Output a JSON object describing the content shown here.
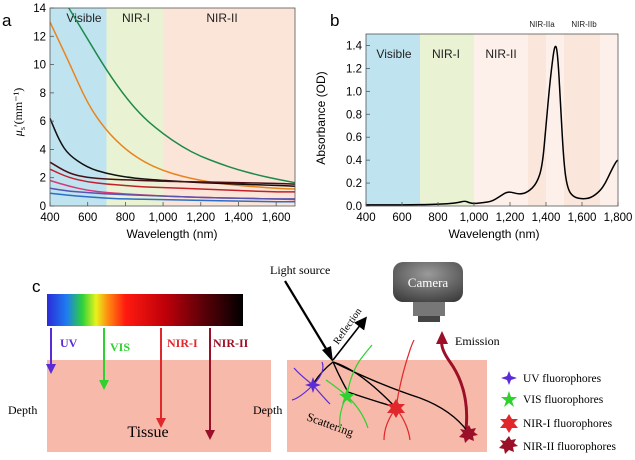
{
  "panel_a": {
    "letter": "a",
    "region_labels": [
      "Visible",
      "NIR-I",
      "NIR-II"
    ],
    "regions": [
      {
        "from": 400,
        "to": 700,
        "color": "#bfe3ef"
      },
      {
        "from": 700,
        "to": 1000,
        "color": "#e9f2d2"
      },
      {
        "from": 1000,
        "to": 1700,
        "color": "#fbe5d8"
      }
    ],
    "xlabel": "Wavelength (nm)",
    "ylabel_main": "μ",
    "ylabel_sub": "s",
    "ylabel_rest": "′(mm⁻¹)",
    "xlim": [
      400,
      1700
    ],
    "ylim": [
      0,
      14
    ],
    "xticks": [
      400,
      600,
      800,
      1000,
      1200,
      1400,
      1600
    ],
    "xtick_labels": [
      "400",
      "600",
      "800",
      "1,000",
      "1,200",
      "1,400",
      "1,600"
    ],
    "yticks": [
      0,
      2,
      4,
      6,
      8,
      10,
      12,
      14
    ],
    "ytick_labels": [
      "0",
      "2",
      "4",
      "6",
      "8",
      "10",
      "12",
      "14"
    ]
  },
  "panel_b": {
    "letter": "b",
    "region_labels": [
      "Visible",
      "NIR-I",
      "NIR-II",
      "NIR-IIa",
      "NIR-IIb"
    ],
    "regions": [
      {
        "from": 400,
        "to": 700,
        "color": "#bfe3ef"
      },
      {
        "from": 700,
        "to": 1000,
        "color": "#e9f2d2"
      },
      {
        "from": 1000,
        "to": 1300,
        "color": "#fdf0ea"
      },
      {
        "from": 1300,
        "to": 1400,
        "color": "#fbe6dc"
      },
      {
        "from": 1400,
        "to": 1500,
        "color": "#fdf0ea"
      },
      {
        "from": 1500,
        "to": 1700,
        "color": "#fbe6dc"
      },
      {
        "from": 1700,
        "to": 1800,
        "color": "#fdf0ea"
      }
    ],
    "xlabel": "Wavelength (nm)",
    "ylabel": "Absorbance (OD)",
    "xlim": [
      400,
      1800
    ],
    "ylim": [
      0,
      1.5
    ],
    "xticks": [
      400,
      600,
      800,
      1000,
      1200,
      1400,
      1600,
      1800
    ],
    "xtick_labels": [
      "400",
      "600",
      "800",
      "1,000",
      "1,200",
      "1,400",
      "1,600",
      "1,800"
    ],
    "yticks": [
      0,
      0.2,
      0.4,
      0.6,
      0.8,
      1.0,
      1.2,
      1.4
    ],
    "ytick_labels": [
      "0.0",
      "0.2",
      "0.4",
      "0.6",
      "0.8",
      "1.0",
      "1.2",
      "1.4"
    ]
  },
  "panel_c": {
    "letter": "c",
    "bands": [
      "UV",
      "VIS",
      "NIR-I",
      "NIR-II"
    ],
    "band_colors": [
      "#5a2bd6",
      "#2fd12f",
      "#e0282c",
      "#9b1028"
    ],
    "depth_label": "Depth",
    "tissue_label": "Tissue",
    "light_source_label": "Light source",
    "reflection_label": "Reflection",
    "camera_label": "Camera",
    "emission_label": "Emission",
    "scattering_label": "Scattering",
    "legend": [
      "UV fluorophores",
      "VIS fluorophores",
      "NIR-I fluorophores",
      "NIR-II fluorophores"
    ],
    "tissue_color": "#f7b9aa"
  },
  "chart_data": [
    {
      "type": "line",
      "xlim": [
        400,
        1700
      ],
      "ylim": [
        0,
        14
      ],
      "series": [
        {
          "color": "#1e8a4a",
          "x": [
            500,
            600,
            700,
            800,
            900,
            1000,
            1100,
            1200,
            1300,
            1400,
            1500,
            1600,
            1700
          ],
          "y": [
            14,
            11.8,
            9.6,
            7.7,
            6.2,
            5.1,
            4.2,
            3.5,
            3.0,
            2.55,
            2.2,
            1.9,
            1.65
          ]
        },
        {
          "color": "#e8841f",
          "x": [
            400,
            500,
            600,
            700,
            800,
            900,
            1000,
            1100,
            1200,
            1300,
            1400,
            1500,
            1600,
            1700
          ],
          "y": [
            13,
            10.2,
            7.2,
            5.3,
            4.0,
            3.1,
            2.5,
            2.1,
            1.8,
            1.6,
            1.45,
            1.35,
            1.25,
            1.2
          ]
        },
        {
          "color": "#111111",
          "x": [
            400,
            450,
            500,
            600,
            700,
            800,
            900,
            1000,
            1200,
            1400,
            1600,
            1700
          ],
          "y": [
            6.2,
            4.6,
            3.6,
            2.7,
            2.3,
            2.05,
            1.9,
            1.8,
            1.65,
            1.55,
            1.45,
            1.4
          ]
        },
        {
          "color": "#4a0f16",
          "x": [
            400,
            500,
            600,
            700,
            800,
            900,
            1000,
            1200,
            1400,
            1600,
            1700
          ],
          "y": [
            3.1,
            2.3,
            2.0,
            1.9,
            1.85,
            1.8,
            1.75,
            1.7,
            1.65,
            1.6,
            1.55
          ]
        },
        {
          "color": "#c0202a",
          "x": [
            400,
            500,
            600,
            700,
            800,
            900,
            1000,
            1200,
            1400,
            1600,
            1700
          ],
          "y": [
            2.6,
            2.0,
            1.7,
            1.55,
            1.45,
            1.35,
            1.3,
            1.2,
            1.1,
            1.0,
            1.0
          ]
        },
        {
          "color": "#d63a7a",
          "x": [
            400,
            500,
            600,
            700,
            800,
            1000,
            1200,
            1400,
            1600,
            1700
          ],
          "y": [
            1.8,
            1.4,
            1.1,
            0.95,
            0.85,
            0.7,
            0.6,
            0.55,
            0.5,
            0.45
          ]
        },
        {
          "color": "#5a54b0",
          "x": [
            400,
            500,
            600,
            700,
            800,
            1000,
            1200,
            1400,
            1600,
            1700
          ],
          "y": [
            1.25,
            1.05,
            0.95,
            0.85,
            0.8,
            0.7,
            0.6,
            0.55,
            0.5,
            0.5
          ]
        },
        {
          "color": "#2b6fc7",
          "x": [
            400,
            500,
            600,
            700,
            800,
            1000,
            1200,
            1400,
            1600,
            1700
          ],
          "y": [
            0.9,
            0.75,
            0.65,
            0.55,
            0.5,
            0.45,
            0.4,
            0.35,
            0.3,
            0.3
          ]
        }
      ]
    },
    {
      "type": "line",
      "xlim": [
        400,
        1800
      ],
      "ylim": [
        0,
        1.5
      ],
      "series": [
        {
          "color": "#000000",
          "x": [
            400,
            600,
            800,
            900,
            950,
            970,
            1000,
            1050,
            1100,
            1150,
            1190,
            1250,
            1300,
            1350,
            1380,
            1400,
            1420,
            1440,
            1450,
            1460,
            1470,
            1480,
            1500,
            1520,
            1550,
            1600,
            1650,
            1700,
            1730,
            1760,
            1790,
            1800
          ],
          "y": [
            0.01,
            0.01,
            0.015,
            0.025,
            0.045,
            0.03,
            0.02,
            0.03,
            0.04,
            0.09,
            0.13,
            0.1,
            0.12,
            0.2,
            0.35,
            0.7,
            1.05,
            1.32,
            1.4,
            1.38,
            1.2,
            0.9,
            0.35,
            0.15,
            0.08,
            0.06,
            0.07,
            0.13,
            0.2,
            0.3,
            0.39,
            0.4
          ]
        }
      ]
    }
  ]
}
